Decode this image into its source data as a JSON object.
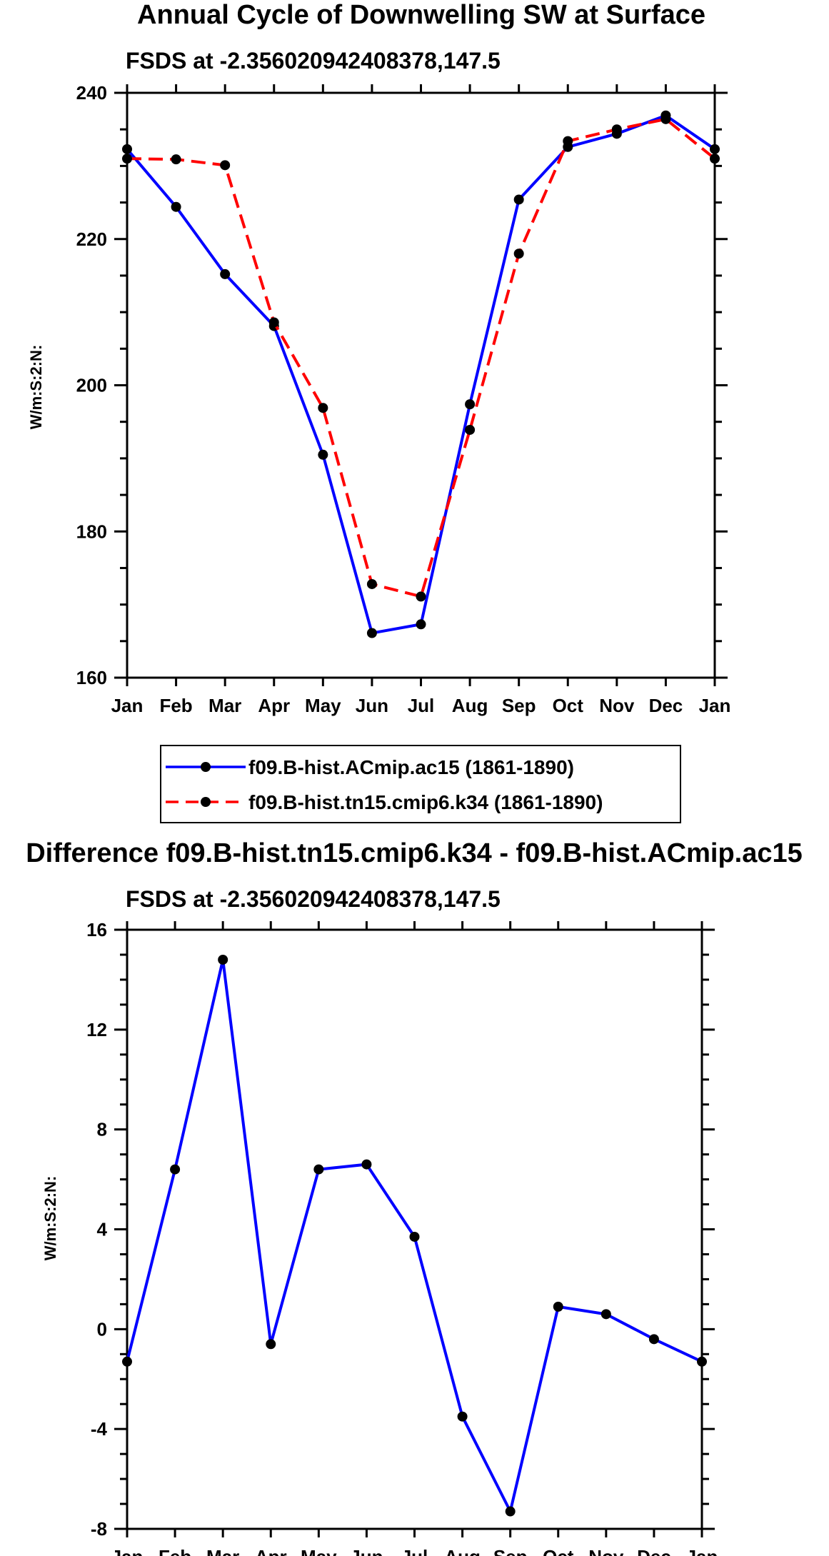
{
  "colors": {
    "blue": "#0000ff",
    "red": "#ff0000",
    "black": "#000000"
  },
  "chart_data": [
    {
      "type": "line",
      "title": "Annual Cycle of Downwelling SW at Surface",
      "subtitle": "FSDS at -2.356020942408378,147.5",
      "xlabel": "",
      "ylabel": "W/m:S:2:N:",
      "categories": [
        "Jan",
        "Feb",
        "Mar",
        "Apr",
        "May",
        "Jun",
        "Jul",
        "Aug",
        "Sep",
        "Oct",
        "Nov",
        "Dec",
        "Jan"
      ],
      "ylim": [
        160,
        240
      ],
      "yticks": [
        160,
        180,
        200,
        220,
        240
      ],
      "yticks_labels": [
        "160",
        "180",
        "200",
        "220",
        "240"
      ],
      "legend_position": "below",
      "series": [
        {
          "name": "f09.B-hist.ACmip.ac15 (1861-1890)",
          "style": "solid",
          "color": "#0000ff",
          "values": [
            232.3,
            224.4,
            215.2,
            208.1,
            190.5,
            166.1,
            167.3,
            197.4,
            225.4,
            232.6,
            234.4,
            236.9,
            232.3
          ]
        },
        {
          "name": "f09.B-hist.tn15.cmip6.k34 (1861-1890)",
          "style": "dashed",
          "color": "#ff0000",
          "values": [
            231.0,
            230.9,
            230.1,
            208.6,
            196.9,
            172.8,
            171.1,
            193.9,
            218.0,
            233.4,
            235.0,
            236.4,
            231.0
          ]
        }
      ]
    },
    {
      "type": "line",
      "title": "Difference f09.B-hist.tn15.cmip6.k34 - f09.B-hist.ACmip.ac15",
      "subtitle": "FSDS at -2.356020942408378,147.5",
      "xlabel": "",
      "ylabel": "W/m:S:2:N:",
      "categories": [
        "Jan",
        "Feb",
        "Mar",
        "Apr",
        "May",
        "Jun",
        "Jul",
        "Aug",
        "Sep",
        "Oct",
        "Nov",
        "Dec",
        "Jan"
      ],
      "ylim": [
        -8,
        16
      ],
      "yticks": [
        -8,
        -4,
        0,
        4,
        8,
        12,
        16
      ],
      "yticks_labels": [
        "-8",
        "-4",
        "0",
        "4",
        "8",
        "12",
        "16"
      ],
      "series": [
        {
          "name": "Difference",
          "style": "solid",
          "color": "#0000ff",
          "values": [
            -1.3,
            6.4,
            14.8,
            -0.6,
            6.4,
            6.6,
            3.7,
            -3.5,
            -7.3,
            0.9,
            0.6,
            -0.4,
            -1.3
          ]
        }
      ]
    }
  ]
}
